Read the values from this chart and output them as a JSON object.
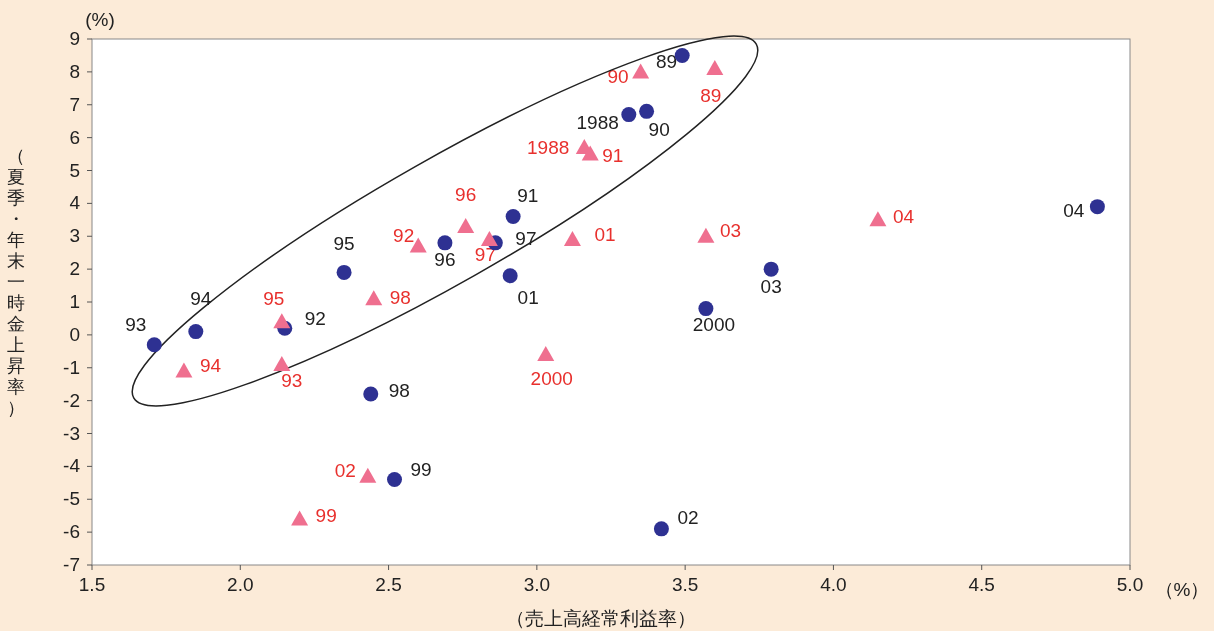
{
  "chart_data": {
    "type": "scatter",
    "xlabel": "（売上高経常利益率）",
    "ylabel": "（夏季・年末一時金上昇率）",
    "xlim": [
      1.5,
      5.0
    ],
    "ylim": [
      -7,
      9
    ],
    "xticks": [
      1.5,
      {
        "value": 2,
        "label": "2.0"
      },
      2.5,
      {
        "value": 3,
        "label": "3.0"
      },
      3.5,
      {
        "value": 4,
        "label": "4.0"
      },
      4.5,
      {
        "value": 5,
        "label": "5.0"
      }
    ],
    "yticks": [
      -7,
      -6,
      -5,
      -4,
      -3,
      -2,
      -1,
      0,
      1,
      2,
      3,
      4,
      5,
      6,
      7,
      8,
      9
    ],
    "grid": false,
    "annotations": [
      "(%)",
      "（%）",
      {
        "text": "1988",
        "x": 3.31,
        "y": 6.7
      },
      {
        "text": "89",
        "x": 3.49,
        "y": 8.5
      },
      {
        "text": "90",
        "x": 3.37,
        "y": 6.8
      },
      {
        "text": "91",
        "x": 2.92,
        "y": 3.6
      },
      {
        "text": "92",
        "x": 2.15,
        "y": 0.2
      },
      {
        "text": "93",
        "x": 1.71,
        "y": -0.3
      },
      {
        "text": "94",
        "x": 1.85,
        "y": 0.1
      },
      {
        "text": "95",
        "x": 2.35,
        "y": 1.9
      },
      {
        "text": "96",
        "x": 2.69,
        "y": 2.8
      },
      {
        "text": "97",
        "x": 2.86,
        "y": 2.8
      },
      {
        "text": "98",
        "x": 2.44,
        "y": -1.8
      },
      {
        "text": "99",
        "x": 2.52,
        "y": -4.4
      },
      {
        "text": "2000",
        "x": 3.57,
        "y": 0.8
      },
      {
        "text": "01",
        "x": 2.91,
        "y": 1.8
      },
      {
        "text": "02",
        "x": 3.42,
        "y": -5.9
      },
      {
        "text": "03",
        "x": 3.79,
        "y": 2.0
      },
      {
        "text": "04",
        "x": 4.89,
        "y": 3.9
      },
      {
        "text": "1988",
        "x": 3.16,
        "y": 5.7
      },
      {
        "text": "89",
        "x": 3.6,
        "y": 8.1
      },
      {
        "text": "90",
        "x": 3.35,
        "y": 8.0
      },
      {
        "text": "91",
        "x": 3.18,
        "y": 5.5
      },
      {
        "text": "92",
        "x": 2.6,
        "y": 2.7
      },
      {
        "text": "93",
        "x": 2.14,
        "y": -0.9
      },
      {
        "text": "94",
        "x": 1.81,
        "y": -1.1
      },
      {
        "text": "95",
        "x": 2.14,
        "y": 0.4
      },
      {
        "text": "96",
        "x": 2.76,
        "y": 3.3
      },
      {
        "text": "97",
        "x": 2.84,
        "y": 2.9
      },
      {
        "text": "98",
        "x": 2.45,
        "y": 1.1
      },
      {
        "text": "99",
        "x": 2.2,
        "y": -5.6
      },
      {
        "text": "2000",
        "x": 3.03,
        "y": -0.6
      },
      {
        "text": "01",
        "x": 3.12,
        "y": 2.9
      },
      {
        "text": "02",
        "x": 2.43,
        "y": -4.3
      },
      {
        "text": "03",
        "x": 3.57,
        "y": 3.0
      },
      {
        "text": "04",
        "x": 4.15,
        "y": 3.5
      }
    ],
    "series": [
      {
        "color": "#2e3192",
        "marker": "circle",
        "x": [
          3.31,
          3.49,
          3.37,
          2.92,
          2.15,
          1.71,
          1.85,
          2.35,
          2.69,
          2.86,
          2.44,
          2.52,
          3.57,
          2.91,
          3.42,
          3.79,
          4.89
        ],
        "values": [
          6.7,
          8.5,
          6.8,
          3.6,
          0.2,
          -0.3,
          0.1,
          1.9,
          2.8,
          2.8,
          -1.8,
          -4.4,
          0.8,
          1.8,
          -5.9,
          2.0,
          3.9
        ]
      },
      {
        "color": "#ef6f8f",
        "marker": "triangle",
        "x": [
          3.16,
          3.6,
          3.35,
          3.18,
          2.6,
          2.14,
          1.81,
          2.14,
          2.76,
          2.84,
          2.45,
          2.2,
          3.03,
          3.12,
          2.43,
          3.57,
          4.15
        ],
        "values": [
          5.7,
          8.1,
          8.0,
          5.5,
          2.7,
          -0.9,
          -1.1,
          0.4,
          3.3,
          2.9,
          1.1,
          -5.6,
          -0.6,
          2.9,
          -4.3,
          3.0,
          3.5
        ]
      }
    ]
  }
}
